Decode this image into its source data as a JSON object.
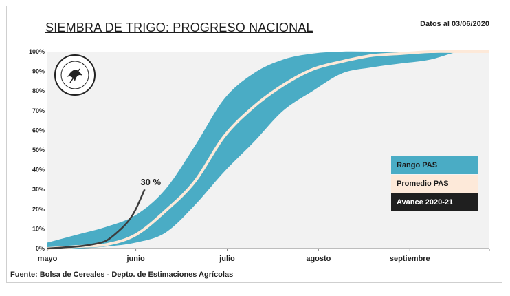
{
  "chart_data": {
    "type": "area",
    "title": "SIEMBRA DE TRIGO: PROGRESO NACIONAL",
    "date_note": "Datos al 03/06/2020",
    "source": "Fuente: Bolsa de Cereales - Depto. de Estimaciones Agrícolas",
    "y_ticks": [
      "0%",
      "10%",
      "20%",
      "30%",
      "40%",
      "50%",
      "60%",
      "70%",
      "80%",
      "90%",
      "100%"
    ],
    "ylim": [
      0,
      100
    ],
    "x_ticks": [
      "mayo",
      "junio",
      "julio",
      "agosto",
      "septiembre"
    ],
    "xlim_days": [
      0,
      150
    ],
    "grid": false,
    "legend_position": "right",
    "series": [
      {
        "name": "Rango PAS",
        "kind": "band",
        "color": "#4aacc5",
        "x": [
          0,
          10,
          20,
          30,
          40,
          50,
          60,
          70,
          80,
          90,
          100,
          110,
          120,
          130,
          140,
          150
        ],
        "lower": [
          0,
          0,
          1,
          3,
          8,
          22,
          39,
          54,
          70,
          80,
          89,
          92,
          94,
          96,
          100,
          100
        ],
        "upper": [
          3,
          7,
          11,
          17,
          30,
          52,
          76,
          89,
          96,
          99,
          100,
          100,
          100,
          100,
          100,
          100
        ]
      },
      {
        "name": "Promedio PAS",
        "kind": "line",
        "color": "#fde9d9",
        "x": [
          0,
          10,
          20,
          30,
          40,
          50,
          60,
          70,
          80,
          90,
          100,
          110,
          120,
          130,
          140,
          150
        ],
        "values": [
          0,
          1,
          2,
          7,
          19,
          34,
          57,
          72,
          83,
          91,
          95,
          98,
          99,
          100,
          100,
          100
        ]
      },
      {
        "name": "Avance 2020-21",
        "kind": "line",
        "color": "#3c3c3c",
        "x": [
          0,
          5,
          10,
          15,
          20,
          25,
          28,
          30,
          33
        ],
        "values": [
          0,
          0.5,
          1,
          2,
          4,
          10,
          15,
          20,
          30
        ]
      }
    ],
    "annotations": [
      {
        "text": "30 %",
        "x": 33,
        "y": 30
      }
    ]
  },
  "logo": {
    "text": "Bolsa de Cereales"
  }
}
